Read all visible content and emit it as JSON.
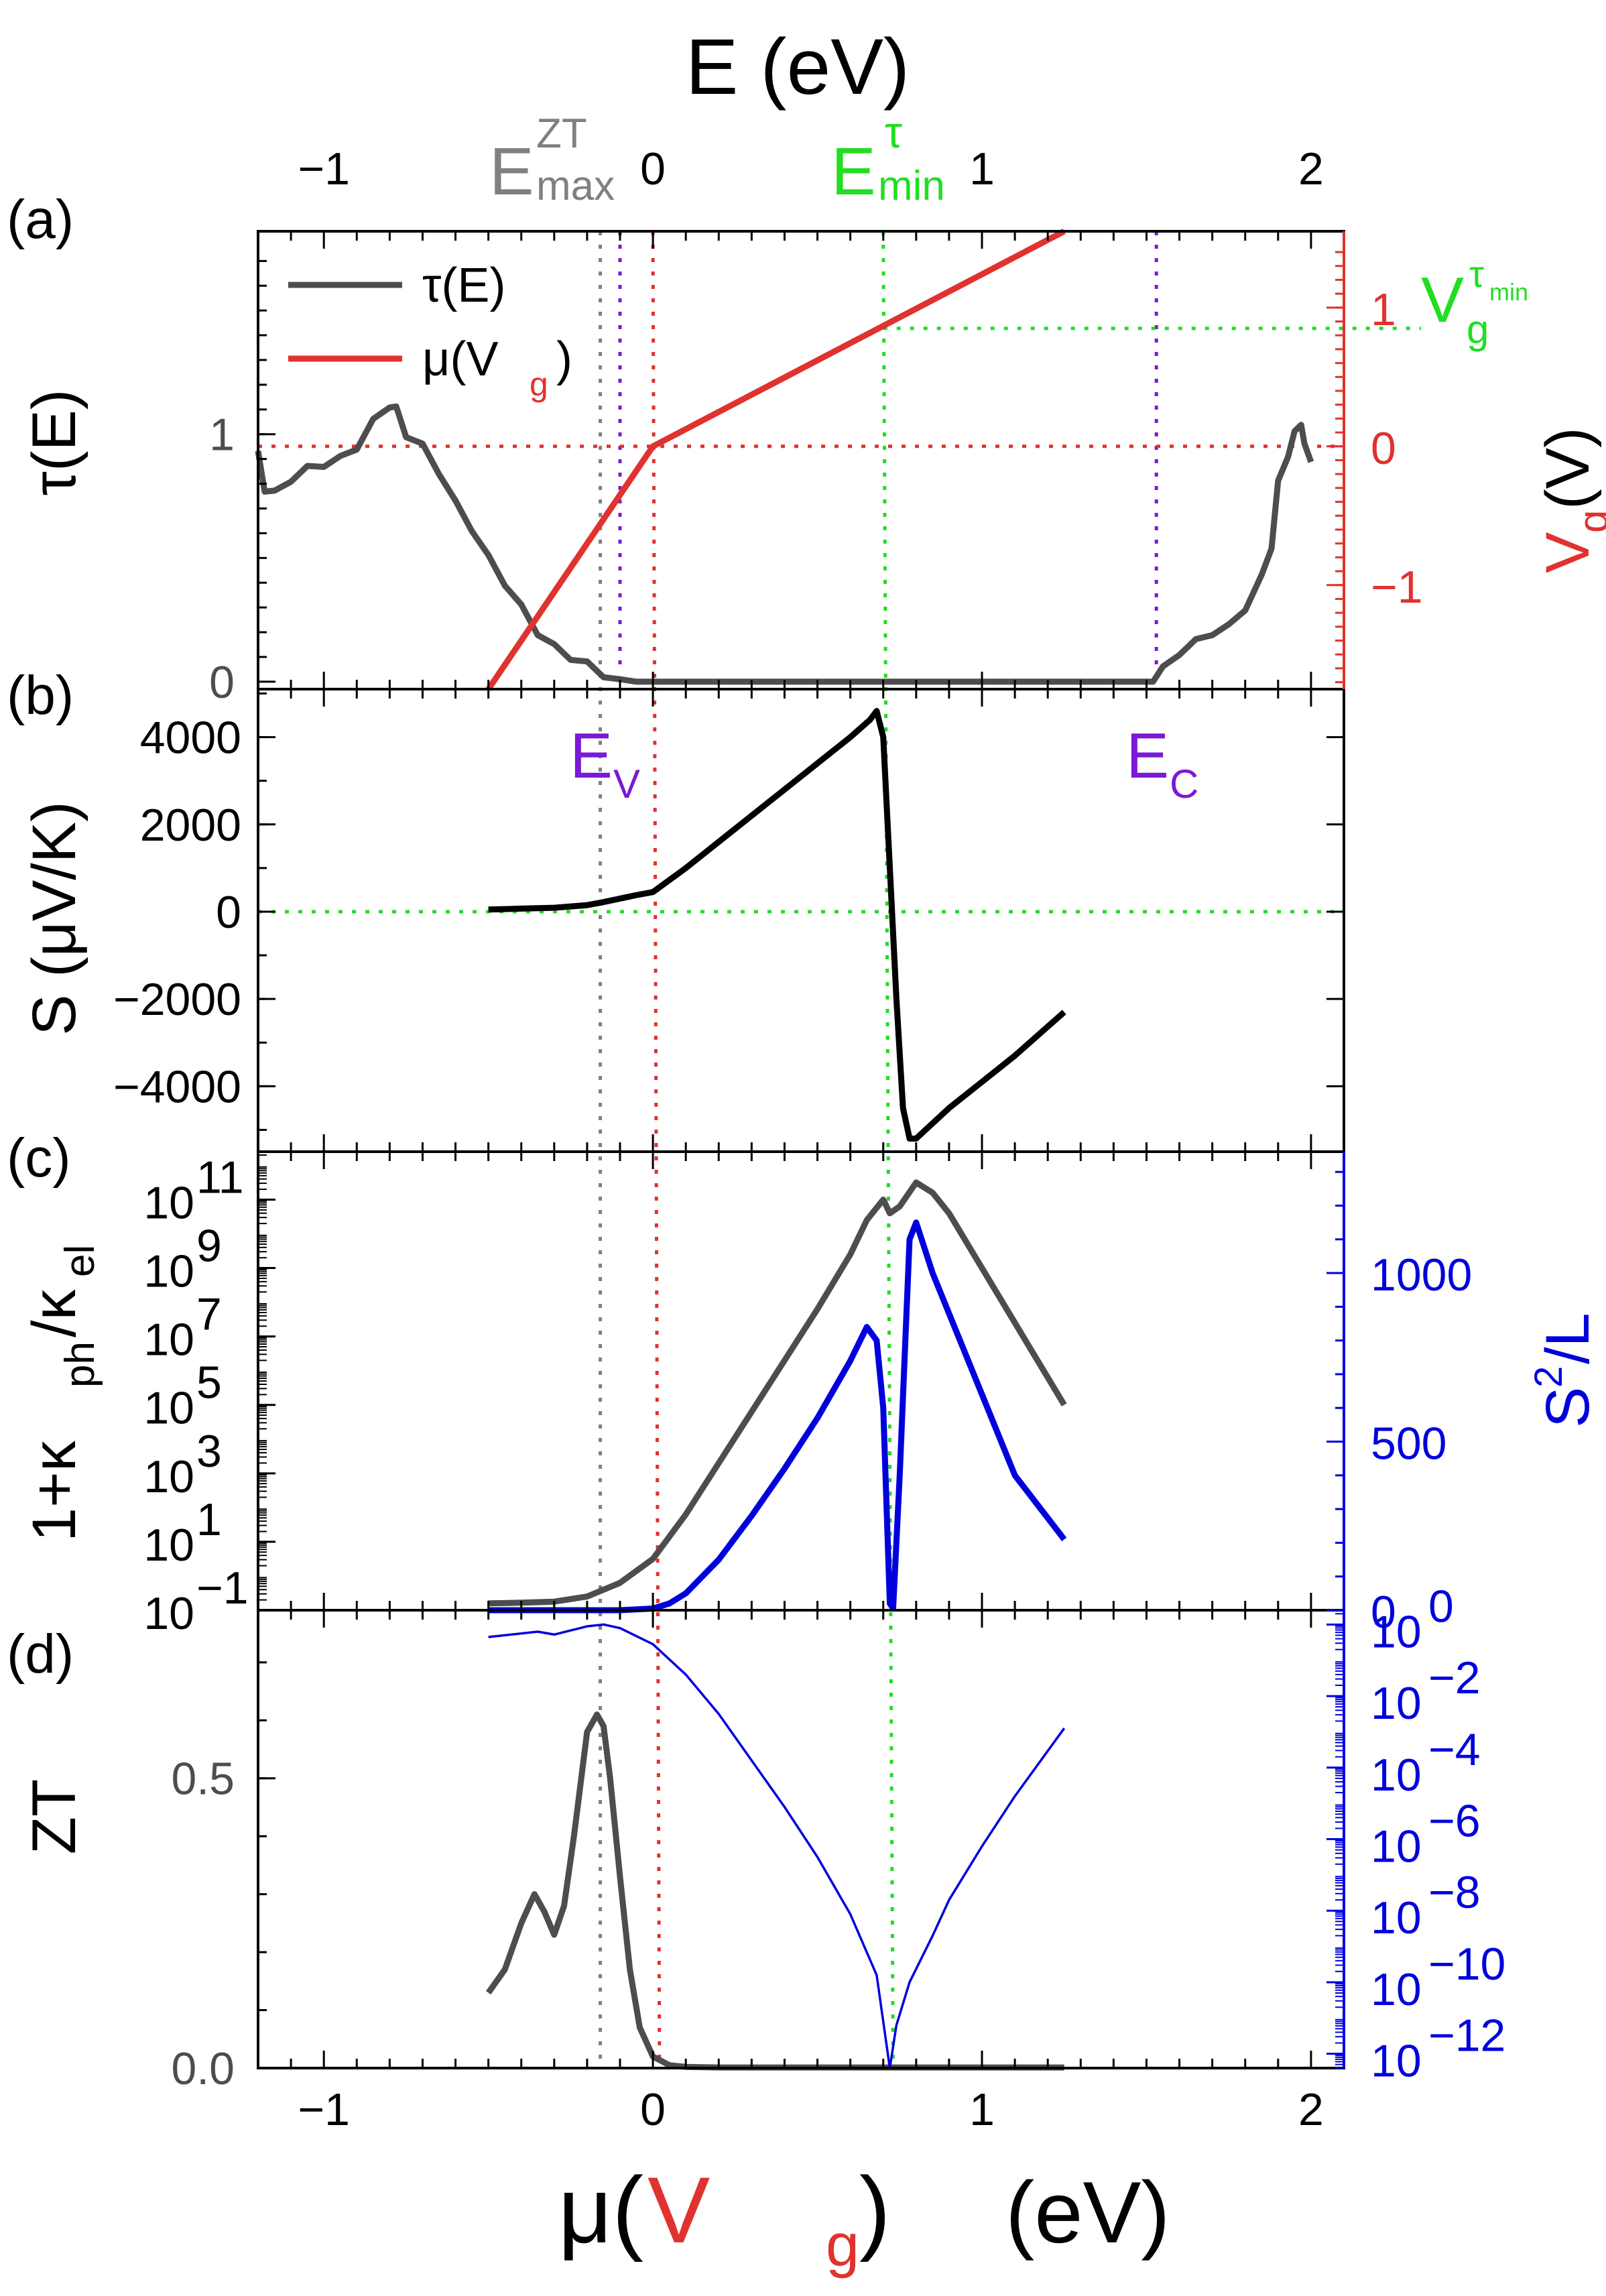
{
  "chart_data": {
    "type": "line",
    "xlabel": {
      "mu": "μ(",
      "vg": "V",
      "vg_sub": "g",
      "close": ")",
      "unit": "(eV)"
    },
    "top_xlabel": "E (eV)",
    "xlim": [
      -1.2,
      2.1
    ],
    "x_ticks": [
      "−1",
      "0",
      "1",
      "2"
    ],
    "top_x_ticks": [
      "−1",
      "0",
      "1",
      "2"
    ],
    "colors": {
      "dark": "#4d4d4d",
      "black": "#000000",
      "red": "#e0322f",
      "blue": "#0000dd",
      "green": "#22dd22",
      "purple": "#7a19d6",
      "gray": "#808080"
    },
    "annotations": {
      "emax_ztt_main": "E",
      "emax_sup": "ZT",
      "emax_sub": "max",
      "emin_main": "E",
      "emin_sup": "τ",
      "emin_sub": "min",
      "vg_tau_min_main": "V",
      "vg_tau_min_sub": "g",
      "vg_tau_min_sup": "τ",
      "vg_tau_min_supsub": "min",
      "ev_main": "E",
      "ev_sub": "V",
      "ec_main": "E",
      "ec_sub": "C"
    },
    "reference_lines": {
      "E_ZT_max": -0.16,
      "E_V": -0.1,
      "E_zero": 0.0,
      "E_tau_min": 0.7,
      "E_C": 1.53,
      "Vg_tau_min": 0.85
    },
    "panels": [
      {
        "id": "a",
        "label": "(a)",
        "ylabel": "τ(E)",
        "ylim": [
          -0.03,
          1.82
        ],
        "y_ticks": [
          "0",
          "1"
        ],
        "right_ylabel": {
          "main": "V",
          "sub": "g",
          "unit": " (V)"
        },
        "right_ylim": [
          -1.75,
          1.55
        ],
        "right_y_ticks": [
          "−1",
          "0",
          "1"
        ],
        "legend": [
          "τ(E)",
          "μ(V",
          "g",
          ")"
        ],
        "series": [
          {
            "name": "τ(E)",
            "color": "#4d4d4d",
            "x": [
              -1.2,
              -1.18,
              -1.15,
              -1.1,
              -1.05,
              -1.0,
              -0.95,
              -0.9,
              -0.85,
              -0.8,
              -0.78,
              -0.75,
              -0.7,
              -0.65,
              -0.6,
              -0.55,
              -0.5,
              -0.45,
              -0.4,
              -0.35,
              -0.3,
              -0.25,
              -0.2,
              -0.15,
              -0.1,
              -0.05,
              0.0,
              1.52,
              1.55,
              1.6,
              1.65,
              1.7,
              1.75,
              1.8,
              1.85,
              1.88,
              1.9,
              1.93,
              1.95,
              1.97,
              1.98,
              2.0
            ],
            "y": [
              0.92,
              0.78,
              0.76,
              0.82,
              0.86,
              0.88,
              0.9,
              0.95,
              1.05,
              1.12,
              1.1,
              1.0,
              0.95,
              0.85,
              0.72,
              0.62,
              0.5,
              0.4,
              0.3,
              0.2,
              0.14,
              0.1,
              0.07,
              0.03,
              0.01,
              0.0,
              0.0,
              0.0,
              0.05,
              0.12,
              0.16,
              0.2,
              0.22,
              0.3,
              0.42,
              0.55,
              0.8,
              0.92,
              1.0,
              1.05,
              0.95,
              0.9
            ]
          },
          {
            "name": "μ(Vg)",
            "color": "#e0322f",
            "x": [
              -0.5,
              0.0,
              1.25
            ],
            "y_right": [
              -1.75,
              0.0,
              1.55
            ]
          }
        ]
      },
      {
        "id": "b",
        "label": "(b)",
        "ylabel": "S (μV/K)",
        "ylim": [
          -5500,
          5100
        ],
        "y_ticks": [
          "4000",
          "2000",
          "0",
          "−2000",
          "−4000"
        ],
        "y_tick_values": [
          4000,
          2000,
          0,
          -2000,
          -4000
        ],
        "series": [
          {
            "name": "S",
            "color": "#000000",
            "x": [
              -0.5,
              -0.4,
              -0.3,
              -0.2,
              -0.15,
              -0.1,
              -0.05,
              0.0,
              0.1,
              0.2,
              0.3,
              0.4,
              0.5,
              0.6,
              0.66,
              0.68,
              0.7,
              0.72,
              0.74,
              0.76,
              0.78,
              0.8,
              0.9,
              1.0,
              1.1,
              1.25
            ],
            "y": [
              50,
              70,
              90,
              150,
              220,
              300,
              380,
              450,
              1000,
              1600,
              2200,
              2800,
              3400,
              4000,
              4400,
              4600,
              4000,
              1000,
              -2000,
              -4500,
              -5200,
              -5200,
              -4500,
              -3900,
              -3300,
              -2300
            ]
          }
        ]
      },
      {
        "id": "c",
        "label": "(c)",
        "ylabel": {
          "pre": "1+κ",
          "sub1": "ph",
          "mid": "/κ",
          "sub2": "el"
        },
        "ylim_log10": [
          -1,
          12.4
        ],
        "y_ticks": [
          "10",
          "10",
          "10",
          "10",
          "10",
          "10",
          "10"
        ],
        "y_tick_exponents": [
          "−1",
          "1",
          "3",
          "5",
          "7",
          "9",
          "11"
        ],
        "y_tick_values_log10": [
          -1,
          1,
          3,
          5,
          7,
          9,
          11
        ],
        "right_ylabel": {
          "main": "S",
          "sup": "2",
          "rest": "/L"
        },
        "right_ylim": [
          0,
          1360
        ],
        "right_y_ticks": [
          "0",
          "500",
          "1000"
        ],
        "right_y_tick_values": [
          0,
          500,
          1000
        ],
        "series": [
          {
            "name": "1+κph/κel",
            "color": "#4d4d4d",
            "x": [
              -0.5,
              -0.4,
              -0.3,
              -0.2,
              -0.1,
              0.0,
              0.1,
              0.2,
              0.3,
              0.4,
              0.5,
              0.6,
              0.65,
              0.7,
              0.72,
              0.75,
              0.8,
              0.85,
              0.9,
              1.0,
              1.1,
              1.25
            ],
            "y_log10": [
              -0.8,
              -0.78,
              -0.75,
              -0.6,
              -0.2,
              0.5,
              1.8,
              3.3,
              4.8,
              6.3,
              7.8,
              9.4,
              10.4,
              11.0,
              10.6,
              10.8,
              11.5,
              11.2,
              10.6,
              9.0,
              7.4,
              5.0
            ]
          },
          {
            "name": "S²/L",
            "color": "#0000dd",
            "x": [
              -0.5,
              -0.3,
              -0.1,
              0.0,
              0.05,
              0.1,
              0.2,
              0.3,
              0.4,
              0.5,
              0.6,
              0.65,
              0.68,
              0.7,
              0.72,
              0.73,
              0.75,
              0.78,
              0.8,
              0.85,
              0.9,
              1.0,
              1.1,
              1.25
            ],
            "y_right": [
              0,
              0,
              0,
              5,
              20,
              50,
              150,
              280,
              420,
              570,
              740,
              840,
              800,
              600,
              20,
              5,
              400,
              1100,
              1150,
              1000,
              880,
              640,
              400,
              210
            ]
          }
        ]
      },
      {
        "id": "d",
        "label": "(d)",
        "ylabel": "ZT",
        "ylim": [
          0,
          0.79
        ],
        "y_ticks": [
          "0.0",
          "0.5"
        ],
        "y_tick_values": [
          0,
          0.5
        ],
        "right_ylim_log10": [
          -12.4,
          0.4
        ],
        "right_y_ticks": [
          "10",
          "10",
          "10",
          "10",
          "10",
          "10",
          "10"
        ],
        "right_y_tick_exponents": [
          "0",
          "−2",
          "−4",
          "−6",
          "−8",
          "−10",
          "−12"
        ],
        "right_y_tick_values_log10": [
          0,
          -2,
          -4,
          -6,
          -8,
          -10,
          -12
        ],
        "series": [
          {
            "name": "ZT",
            "color": "#4d4d4d",
            "x": [
              -0.5,
              -0.45,
              -0.4,
              -0.36,
              -0.33,
              -0.3,
              -0.27,
              -0.24,
              -0.2,
              -0.17,
              -0.15,
              -0.13,
              -0.1,
              -0.07,
              -0.04,
              0.0,
              0.05,
              0.1,
              0.2,
              0.4,
              0.6,
              0.8,
              1.0,
              1.25
            ],
            "y": [
              0.13,
              0.17,
              0.25,
              0.3,
              0.27,
              0.23,
              0.28,
              0.4,
              0.58,
              0.61,
              0.59,
              0.5,
              0.33,
              0.17,
              0.07,
              0.02,
              0.005,
              0.002,
              0.001,
              0.001,
              0.001,
              0.001,
              0.001,
              0.001
            ]
          },
          {
            "name": "ZT (log)",
            "color": "#0000dd",
            "x": [
              -0.5,
              -0.4,
              -0.35,
              -0.3,
              -0.2,
              -0.15,
              -0.1,
              0.0,
              0.1,
              0.2,
              0.3,
              0.4,
              0.5,
              0.6,
              0.68,
              0.72,
              0.74,
              0.78,
              0.85,
              0.9,
              1.0,
              1.1,
              1.25
            ],
            "y_log10": [
              -0.35,
              -0.25,
              -0.2,
              -0.28,
              -0.05,
              0.0,
              -0.1,
              -0.55,
              -1.4,
              -2.5,
              -3.8,
              -5.1,
              -6.5,
              -8.1,
              -9.8,
              -12.4,
              -11.2,
              -10.0,
              -8.7,
              -7.7,
              -6.2,
              -4.8,
              -2.9
            ]
          }
        ]
      }
    ]
  }
}
